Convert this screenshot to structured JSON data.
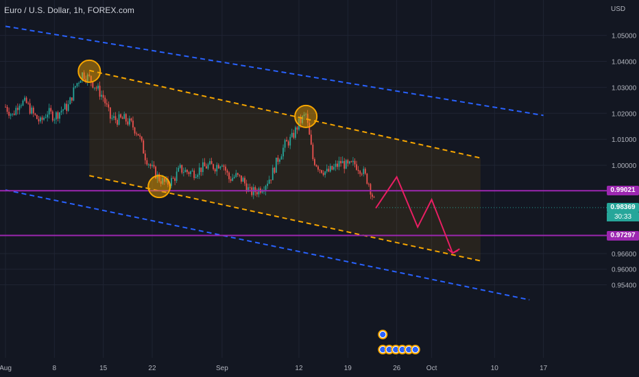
{
  "header": {
    "title": "Euro / U.S. Dollar, 1h, FOREX.com",
    "currency_label": "USD"
  },
  "price_tags": {
    "resistance": "0.99021",
    "current": "0.98369",
    "countdown": "30:33",
    "support": "0.97297"
  },
  "colors": {
    "background": "#131722",
    "grid": "#1f2433",
    "candle_up": "#26a69a",
    "candle_down": "#ef5350",
    "outer_channel": "#2962ff",
    "inner_channel": "#f7a600",
    "horizontal_level": "#9c27b0",
    "projection": "#e91e63",
    "current_price": "#26a69a",
    "marker_circle": "#f7a600"
  },
  "chart_data": {
    "type": "candlestick",
    "symbol": "EURUSD",
    "timeframe": "1h",
    "x_ticks": [
      "Aug",
      "8",
      "15",
      "22",
      "Sep",
      "12",
      "19",
      "26",
      "Oct",
      "10",
      "17"
    ],
    "y_ticks": [
      1.05,
      1.04,
      1.03,
      1.02,
      1.01,
      1.0,
      0.966,
      0.96,
      0.954
    ],
    "y_tick_labels": [
      "1.05000",
      "1.04000",
      "1.03000",
      "1.02000",
      "1.01000",
      "1.00000",
      "0.96600",
      "0.96000",
      "0.95400"
    ],
    "ylim": [
      0.9495,
      1.0555
    ],
    "date_range": [
      "2022-08-01",
      "2022-10-20"
    ],
    "grid": true,
    "current_price": 0.98369,
    "horizontal_levels": [
      0.99021,
      0.97297
    ],
    "price_path": [
      [
        "2022-08-01",
        1.0225
      ],
      [
        "2022-08-02",
        1.0192
      ],
      [
        "2022-08-03",
        1.0245
      ],
      [
        "2022-08-04",
        1.0238
      ],
      [
        "2022-08-05",
        1.0195
      ],
      [
        "2022-08-06",
        1.0165
      ],
      [
        "2022-08-07",
        1.0205
      ],
      [
        "2022-08-08",
        1.0188
      ],
      [
        "2022-08-09",
        1.0212
      ],
      [
        "2022-08-10",
        1.0228
      ],
      [
        "2022-08-11",
        1.0305
      ],
      [
        "2022-08-12",
        1.0352
      ],
      [
        "2022-08-13",
        1.0335
      ],
      [
        "2022-08-14",
        1.0298
      ],
      [
        "2022-08-15",
        1.0262
      ],
      [
        "2022-08-16",
        1.0182
      ],
      [
        "2022-08-17",
        1.0175
      ],
      [
        "2022-08-18",
        1.0178
      ],
      [
        "2022-08-19",
        1.0158
      ],
      [
        "2022-08-20",
        1.0122
      ],
      [
        "2022-08-21",
        1.0035
      ],
      [
        "2022-08-22",
        0.9985
      ],
      [
        "2022-08-23",
        0.9948
      ],
      [
        "2022-08-24",
        0.9928
      ],
      [
        "2022-08-25",
        0.9945
      ],
      [
        "2022-08-26",
        0.9985
      ],
      [
        "2022-08-27",
        0.9975
      ],
      [
        "2022-08-28",
        0.9972
      ],
      [
        "2022-08-29",
        0.9988
      ],
      [
        "2022-08-30",
        0.9998
      ],
      [
        "2022-08-31",
        0.9995
      ],
      [
        "2022-09-01",
        1.0015
      ],
      [
        "2022-09-02",
        0.9948
      ],
      [
        "2022-09-03",
        0.9958
      ],
      [
        "2022-09-04",
        0.9942
      ],
      [
        "2022-09-05",
        0.9895
      ],
      [
        "2022-09-06",
        0.9902
      ],
      [
        "2022-09-07",
        0.9922
      ],
      [
        "2022-09-08",
        0.9958
      ],
      [
        "2022-09-09",
        1.0025
      ],
      [
        "2022-09-10",
        1.0078
      ],
      [
        "2022-09-11",
        1.0105
      ],
      [
        "2022-09-12",
        1.0162
      ],
      [
        "2022-09-13",
        1.0195
      ],
      [
        "2022-09-14",
        1.0025
      ],
      [
        "2022-09-15",
        0.9988
      ],
      [
        "2022-09-16",
        0.9972
      ],
      [
        "2022-09-17",
        0.9988
      ],
      [
        "2022-09-18",
        1.0012
      ],
      [
        "2022-09-19",
        0.9995
      ],
      [
        "2022-09-20",
        1.0005
      ],
      [
        "2022-09-21",
        0.9982
      ],
      [
        "2022-09-22",
        0.9932
      ],
      [
        "2022-09-23",
        0.9837
      ]
    ],
    "trend_lines": [
      {
        "role": "outer-channel-upper",
        "style": "dashed",
        "color": "#2962ff",
        "from": [
          "2022-08-01",
          1.0535
        ],
        "to": [
          "2022-10-17",
          1.0192
        ]
      },
      {
        "role": "outer-channel-lower",
        "style": "dashed",
        "color": "#2962ff",
        "from": [
          "2022-08-01",
          0.9905
        ],
        "to": [
          "2022-10-15",
          0.9482
        ]
      },
      {
        "role": "inner-channel-upper",
        "style": "dashed",
        "color": "#f7a600",
        "from": [
          "2022-08-13",
          1.0365
        ],
        "to": [
          "2022-10-08",
          1.0028
        ]
      },
      {
        "role": "inner-channel-lower",
        "style": "dashed",
        "color": "#f7a600",
        "from": [
          "2022-08-13",
          0.996
        ],
        "to": [
          "2022-10-08",
          0.9632
        ]
      }
    ],
    "channel_fill": {
      "from": "2022-08-13",
      "to": "2022-10-08",
      "upper": [
        1.0365,
        1.0028
      ],
      "lower": [
        0.996,
        0.9632
      ]
    },
    "marked_points": [
      [
        "2022-08-13",
        1.0362
      ],
      [
        "2022-08-23",
        0.9918
      ],
      [
        "2022-09-13",
        1.0188
      ]
    ],
    "projection": [
      [
        "2022-09-23",
        0.9835
      ],
      [
        "2022-09-26",
        0.9955
      ],
      [
        "2022-09-29",
        0.9762
      ],
      [
        "2022-10-01",
        0.9868
      ],
      [
        "2022-10-04",
        0.9662
      ],
      [
        "2022-10-05",
        0.9678
      ]
    ],
    "event_icons": [
      [
        "2022-09-24",
        "calendar-event-icon"
      ],
      [
        "2022-09-24",
        "calendar-event-icon"
      ],
      [
        "2022-09-25",
        "calendar-event-icon"
      ],
      [
        "2022-09-26",
        "calendar-event-icon"
      ],
      [
        "2022-09-27",
        "calendar-event-icon"
      ],
      [
        "2022-09-28",
        "calendar-event-icon"
      ],
      [
        "2022-09-29",
        "calendar-event-icon"
      ]
    ]
  }
}
